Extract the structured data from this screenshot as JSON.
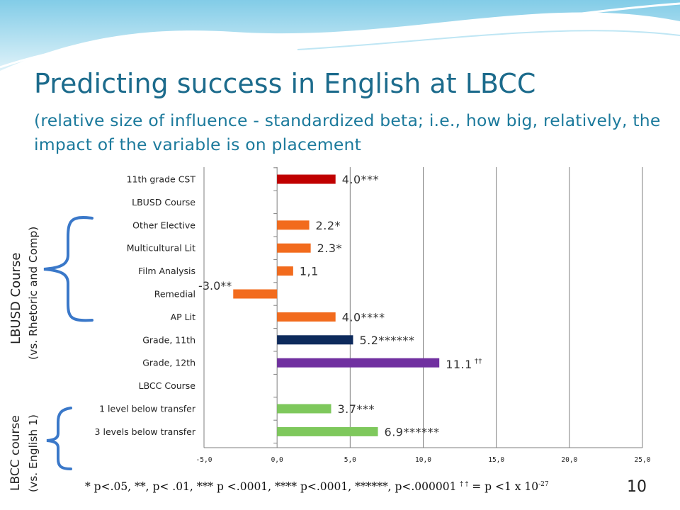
{
  "slide": {
    "title": "Predicting success in English at LBCC",
    "subtitle": "(relative size of influence - standardized beta; i.e., how big, relatively, the impact of the variable is on placement",
    "page_number": "10",
    "footnote_main": "* p<.05, **, p< .01, *** p <.0001, **** p<.0001, ******, p<.000001",
    "footnote_daggers": "† †",
    "footnote_tail_a": " = p <1 x 10",
    "footnote_exponent": "-27",
    "side_labels": {
      "lbusd_title": "LBUSD Course",
      "lbusd_sub": "(vs. Rhetoric and Comp)",
      "lbcc_title": "LBCC course",
      "lbcc_sub": "(vs. English 1)"
    },
    "colors": {
      "title": "#1c6b8c",
      "red": "#c00000",
      "orange": "#f26b1d",
      "navy": "#0d2a5c",
      "purple": "#7030a0",
      "green": "#7ec85c",
      "brace": "#3a78c9",
      "wave": "#7fcbe6"
    }
  },
  "chart_data": {
    "type": "bar",
    "orientation": "horizontal",
    "categories": [
      "11th grade CST",
      "LBUSD Course",
      "Other Elective",
      "Multicultural Lit",
      "Film Analysis",
      "Remedial",
      "AP Lit",
      "Grade, 11th",
      "Grade, 12th",
      "LBCC Course",
      "1 level below transfer",
      "3 levels below transfer"
    ],
    "values": [
      4.0,
      null,
      2.2,
      2.3,
      1.1,
      -3.0,
      4.0,
      5.2,
      11.1,
      null,
      3.7,
      6.9
    ],
    "data_labels": [
      "4.0***",
      "",
      "2.2*",
      "2.3*",
      "1,1",
      "-3.0**",
      "4.0****",
      "5.2******",
      "11.1",
      "",
      "3.7***",
      "6.9******"
    ],
    "data_label_superscripts": [
      "",
      "",
      "",
      "",
      "",
      "",
      "",
      "",
      "††",
      "",
      "",
      ""
    ],
    "bar_colors": [
      "#c00000",
      null,
      "#f26b1d",
      "#f26b1d",
      "#f26b1d",
      "#f26b1d",
      "#f26b1d",
      "#0d2a5c",
      "#7030a0",
      null,
      "#7ec85c",
      "#7ec85c"
    ],
    "xlim": [
      -5,
      25
    ],
    "xticks": [
      -5,
      0,
      5,
      10,
      15,
      20,
      25
    ],
    "xtick_labels": [
      "-5,0",
      "0,0",
      "5,0",
      "10,0",
      "15,0",
      "20,0",
      "25,0"
    ],
    "grid": "vertical",
    "legend": "none"
  }
}
